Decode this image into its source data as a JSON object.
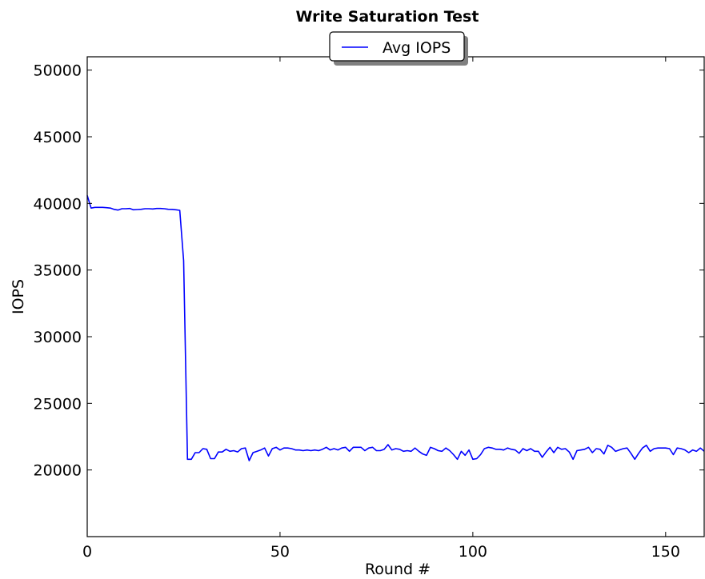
{
  "chart_data": {
    "type": "line",
    "title": "Write Saturation Test",
    "xlabel": "Round #",
    "ylabel": "IOPS",
    "xlim": [
      0,
      160
    ],
    "ylim": [
      15000,
      51000
    ],
    "xticks": [
      0,
      50,
      100,
      150
    ],
    "yticks": [
      20000,
      25000,
      30000,
      35000,
      40000,
      45000,
      50000
    ],
    "grid": false,
    "legend_position": "top-center",
    "colors": {
      "series": "#0000ff",
      "axes": "#000000",
      "background": "#ffffff"
    },
    "series": [
      {
        "name": "Avg IOPS",
        "x": [
          0,
          1,
          2,
          3,
          4,
          5,
          6,
          7,
          8,
          9,
          10,
          11,
          12,
          13,
          14,
          15,
          16,
          17,
          18,
          19,
          20,
          21,
          22,
          23,
          24,
          25,
          26,
          27,
          28,
          29,
          30,
          31,
          32,
          33,
          34,
          35,
          36,
          37,
          38,
          39,
          40,
          41,
          42,
          43,
          44,
          45,
          46,
          47,
          48,
          49,
          50,
          51,
          52,
          53,
          54,
          55,
          56,
          57,
          58,
          59,
          60,
          61,
          62,
          63,
          64,
          65,
          66,
          67,
          68,
          69,
          70,
          71,
          72,
          73,
          74,
          75,
          76,
          77,
          78,
          79,
          80,
          81,
          82,
          83,
          84,
          85,
          86,
          87,
          88,
          89,
          90,
          91,
          92,
          93,
          94,
          95,
          96,
          97,
          98,
          99,
          100,
          101,
          102,
          103,
          104,
          105,
          106,
          107,
          108,
          109,
          110,
          111,
          112,
          113,
          114,
          115,
          116,
          117,
          118,
          119,
          120,
          121,
          122,
          123,
          124,
          125,
          126,
          127,
          128,
          129,
          130,
          131,
          132,
          133,
          134,
          135,
          136,
          137,
          138,
          139,
          140,
          141,
          142,
          143,
          144,
          145,
          146,
          147,
          148,
          149,
          150,
          151,
          152,
          153,
          154,
          155,
          156,
          157,
          158,
          159,
          160
        ],
        "y": [
          40600,
          39650,
          39700,
          39700,
          39700,
          39680,
          39650,
          39550,
          39500,
          39600,
          39600,
          39620,
          39520,
          39540,
          39560,
          39600,
          39600,
          39580,
          39620,
          39620,
          39600,
          39560,
          39550,
          39520,
          39480,
          35700,
          20800,
          20800,
          21300,
          21300,
          21600,
          21550,
          20850,
          20850,
          21350,
          21350,
          21550,
          21400,
          21450,
          21350,
          21600,
          21650,
          20700,
          21300,
          21400,
          21500,
          21650,
          21050,
          21600,
          21700,
          21500,
          21650,
          21650,
          21600,
          21500,
          21500,
          21450,
          21500,
          21450,
          21500,
          21450,
          21550,
          21700,
          21500,
          21600,
          21500,
          21650,
          21700,
          21400,
          21700,
          21700,
          21700,
          21450,
          21650,
          21700,
          21450,
          21450,
          21550,
          21900,
          21500,
          21600,
          21550,
          21400,
          21450,
          21400,
          21650,
          21400,
          21200,
          21100,
          21700,
          21600,
          21450,
          21400,
          21650,
          21450,
          21150,
          20800,
          21400,
          21100,
          21500,
          20800,
          20850,
          21150,
          21600,
          21700,
          21650,
          21550,
          21550,
          21500,
          21650,
          21550,
          21500,
          21250,
          21600,
          21450,
          21600,
          21400,
          21400,
          20950,
          21350,
          21700,
          21300,
          21700,
          21550,
          21600,
          21350,
          20800,
          21450,
          21500,
          21550,
          21700,
          21300,
          21600,
          21550,
          21200,
          21850,
          21700,
          21400,
          21500,
          21600,
          21650,
          21250,
          20800,
          21250,
          21650,
          21850,
          21400,
          21600,
          21650,
          21650,
          21650,
          21600,
          21150,
          21650,
          21600,
          21500,
          21300,
          21500,
          21400,
          21650,
          21400
        ]
      }
    ]
  }
}
